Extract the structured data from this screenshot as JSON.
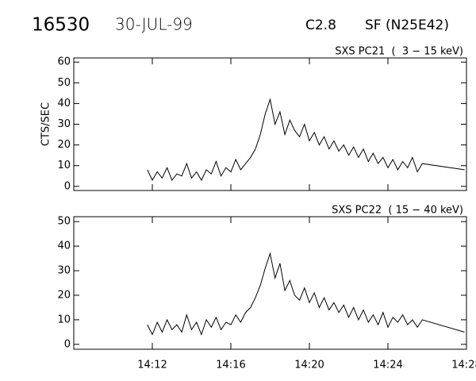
{
  "header": {
    "id": "16530",
    "date": "30-JUL-99",
    "class": "C2.8",
    "location": "SF (N25E42)"
  },
  "chart_data": [
    {
      "type": "line",
      "title": "SXS PC21  (  3 − 15 keV)",
      "ylabel": "CTS/SEC",
      "color": "#000000",
      "xlim": [
        8,
        28
      ],
      "xticks": [
        12,
        16,
        20,
        24,
        28
      ],
      "ylim": [
        -2,
        62
      ],
      "yticks": [
        0,
        10,
        20,
        30,
        40,
        50,
        60
      ],
      "x": [
        11.75,
        12,
        12.25,
        12.5,
        12.75,
        13,
        13.25,
        13.5,
        13.75,
        14,
        14.25,
        14.5,
        14.75,
        15,
        15.25,
        15.5,
        15.75,
        16,
        16.25,
        16.5,
        16.75,
        17,
        17.25,
        17.5,
        17.75,
        18,
        18.25,
        18.5,
        18.75,
        19,
        19.25,
        19.5,
        19.75,
        20,
        20.25,
        20.5,
        20.75,
        21,
        21.25,
        21.5,
        21.75,
        22,
        22.25,
        22.5,
        22.75,
        23,
        23.25,
        23.5,
        23.75,
        24,
        24.25,
        24.5,
        24.75,
        25,
        25.25,
        25.5,
        25.75,
        27.9
      ],
      "values": [
        8,
        3,
        7,
        4,
        9,
        3,
        6,
        5,
        11,
        4,
        7,
        3,
        8,
        6,
        12,
        5,
        9,
        7,
        13,
        8,
        11,
        14,
        18,
        25,
        35,
        42,
        30,
        36,
        25,
        32,
        27,
        24,
        30,
        22,
        26,
        20,
        24,
        18,
        22,
        17,
        20,
        15,
        19,
        14,
        18,
        12,
        16,
        11,
        14,
        9,
        13,
        8,
        12,
        9,
        14,
        7,
        11,
        8
      ]
    },
    {
      "type": "line",
      "title": "SXS PC22  ( 15 − 40 keV)",
      "color": "#000000",
      "xlim": [
        8,
        28
      ],
      "xticks": [
        {
          "value": 12,
          "label": "14:12"
        },
        {
          "value": 16,
          "label": "14:16"
        },
        {
          "value": 20,
          "label": "14:20"
        },
        {
          "value": 24,
          "label": "14:24"
        },
        {
          "value": 28,
          "label": "14:28"
        }
      ],
      "ylim": [
        -2,
        52
      ],
      "yticks": [
        0,
        10,
        20,
        30,
        40,
        50
      ],
      "x": [
        11.75,
        12,
        12.25,
        12.5,
        12.75,
        13,
        13.25,
        13.5,
        13.75,
        14,
        14.25,
        14.5,
        14.75,
        15,
        15.25,
        15.5,
        15.75,
        16,
        16.25,
        16.5,
        16.75,
        17,
        17.25,
        17.5,
        17.75,
        18,
        18.25,
        18.5,
        18.75,
        19,
        19.25,
        19.5,
        19.75,
        20,
        20.25,
        20.5,
        20.75,
        21,
        21.25,
        21.5,
        21.75,
        22,
        22.25,
        22.5,
        22.75,
        23,
        23.25,
        23.5,
        23.75,
        24,
        24.25,
        24.5,
        24.75,
        25,
        25.25,
        25.5,
        25.75,
        27.9
      ],
      "values": [
        8,
        4,
        9,
        5,
        10,
        6,
        8,
        5,
        12,
        6,
        9,
        4,
        10,
        7,
        11,
        6,
        9,
        8,
        12,
        9,
        13,
        15,
        19,
        24,
        31,
        37,
        27,
        33,
        22,
        26,
        20,
        18,
        23,
        17,
        21,
        15,
        19,
        14,
        17,
        13,
        16,
        11,
        15,
        10,
        14,
        9,
        12,
        8,
        13,
        7,
        11,
        9,
        12,
        8,
        10,
        7,
        10,
        5
      ]
    }
  ]
}
